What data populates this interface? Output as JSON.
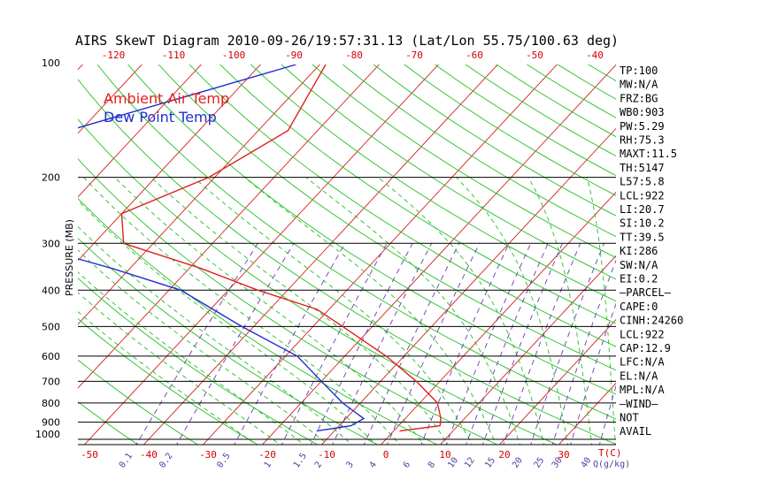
{
  "chart_data": {
    "type": "line",
    "title": "AIRS SkewT Diagram 2010-09-26/19:57:31.13 (Lat/Lon 55.75/100.63 deg)",
    "ylabel": "PRESSURE (MB)",
    "pressure_ticks": [
      "100",
      "200",
      "300",
      "400",
      "500",
      "600",
      "700",
      "800",
      "900",
      "1000"
    ],
    "pressure_values": [
      100,
      200,
      300,
      400,
      500,
      600,
      700,
      800,
      900,
      1000
    ],
    "top_temp_ticks": [
      "-120",
      "-110",
      "-100",
      "-90",
      "-80",
      "-70",
      "-60",
      "-50",
      "-40"
    ],
    "bottom_temp_ticks": [
      "-50",
      "-40",
      "-30",
      "-20",
      "-10",
      "0",
      "10",
      "20",
      "30"
    ],
    "bottom_temp_values": [
      -50,
      -40,
      -30,
      -20,
      -10,
      0,
      10,
      20,
      30
    ],
    "bottom_unit_label": "T(C)",
    "mixing_ratio_ticks": [
      "0.1",
      "0.2",
      "0.5",
      "1",
      "1.5",
      "2",
      "3",
      "4",
      "6",
      "8",
      "10",
      "12",
      "15",
      "20",
      "25",
      "30",
      "40"
    ],
    "mixing_ratio_unit": "Q(g/kg)",
    "legend": [
      "Ambient Air Temp",
      "Dew Point Temp"
    ],
    "series": [
      {
        "name": "Ambient Air Temp",
        "color": "#e02020",
        "points": [
          {
            "p": 100,
            "t": -69
          },
          {
            "p": 150,
            "t": -65
          },
          {
            "p": 200,
            "t": -71
          },
          {
            "p": 250,
            "t": -80
          },
          {
            "p": 300,
            "t": -75
          },
          {
            "p": 350,
            "t": -58
          },
          {
            "p": 400,
            "t": -45
          },
          {
            "p": 450,
            "t": -32
          },
          {
            "p": 500,
            "t": -25
          },
          {
            "p": 600,
            "t": -13
          },
          {
            "p": 700,
            "t": -4
          },
          {
            "p": 800,
            "t": 3
          },
          {
            "p": 880,
            "t": 6
          },
          {
            "p": 920,
            "t": 7
          },
          {
            "p": 950,
            "t": 1
          }
        ]
      },
      {
        "name": "Dew Point Temp",
        "color": "#1f2fd0",
        "points": [
          {
            "p": 100,
            "t": -74
          },
          {
            "p": 150,
            "t": -102
          },
          {
            "p": 200,
            "t": -106
          },
          {
            "p": 250,
            "t": -104
          },
          {
            "p": 300,
            "t": -92
          },
          {
            "p": 350,
            "t": -73
          },
          {
            "p": 400,
            "t": -58
          },
          {
            "p": 500,
            "t": -42
          },
          {
            "p": 600,
            "t": -28
          },
          {
            "p": 700,
            "t": -20
          },
          {
            "p": 800,
            "t": -13
          },
          {
            "p": 880,
            "t": -7
          },
          {
            "p": 920,
            "t": -8
          },
          {
            "p": 950,
            "t": -13
          }
        ]
      }
    ]
  },
  "indices": [
    "TP:100",
    "MW:N/A",
    "FRZ:BG",
    "WB0:903",
    "PW:5.29",
    "RH:75.3",
    "MAXT:11.5",
    "TH:5147",
    "L57:5.8",
    "LCL:922",
    "LI:20.7",
    "SI:10.2",
    "TT:39.5",
    "KI:286",
    "SW:N/A",
    "EI:0.2",
    "—PARCEL—",
    "CAPE:0",
    "CINH:24260",
    "LCL:922",
    "CAP:12.9",
    "LFC:N/A",
    "EL:N/A",
    "MPL:N/A",
    "—WIND—",
    "NOT",
    "AVAIL"
  ],
  "colors": {
    "isotherm": "#d42020",
    "dry_adiabat": "#22c022",
    "moist_adiabat": "#22c022",
    "mixing_ratio": "#6a3ab0",
    "axis": "#000000"
  }
}
